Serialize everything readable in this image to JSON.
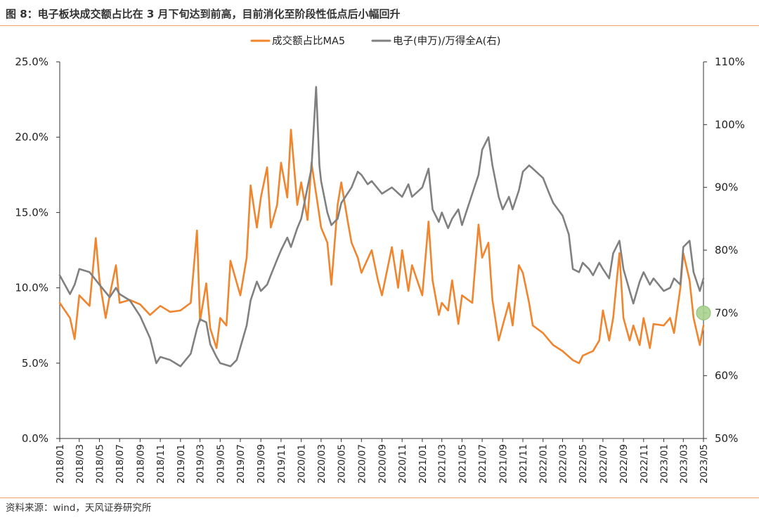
{
  "header": {
    "title": "图 8：电子板块成交额占比在 3 月下旬达到前高，目前消化至阶段性低点后小幅回升"
  },
  "footer": {
    "source": "资料来源：wind，天风证券研究所"
  },
  "colors": {
    "orange": "#f0852d",
    "gray": "#808080",
    "highlight": "#a9d18e",
    "rule": "#f0a15c"
  },
  "chart_data": {
    "type": "line",
    "legend_position": "top-center",
    "grid": false,
    "x_ticks": [
      "2018/01",
      "2018/03",
      "2018/05",
      "2018/07",
      "2018/09",
      "2018/11",
      "2019/01",
      "2019/03",
      "2019/05",
      "2019/07",
      "2019/09",
      "2019/11",
      "2020/01",
      "2020/03",
      "2020/05",
      "2020/07",
      "2020/09",
      "2020/11",
      "2021/01",
      "2021/03",
      "2021/05",
      "2021/07",
      "2021/09",
      "2021/11",
      "2022/01",
      "2022/03",
      "2022/05",
      "2022/07",
      "2022/09",
      "2022/11",
      "2023/01",
      "2023/03",
      "2023/05"
    ],
    "x_range": [
      "2018-01",
      "2023-05"
    ],
    "y_left": {
      "ticks": [
        "0.0%",
        "5.0%",
        "10.0%",
        "15.0%",
        "20.0%",
        "25.0%"
      ],
      "range": [
        0,
        25
      ],
      "unit": "%"
    },
    "y_right": {
      "ticks": [
        "50%",
        "60%",
        "70%",
        "80%",
        "90%",
        "100%",
        "110%"
      ],
      "range": [
        50,
        110
      ],
      "unit": "%"
    },
    "series": [
      {
        "name": "成交额占比MA5",
        "axis": "left",
        "color": "#f0852d",
        "points": [
          [
            "2018-01",
            9.0
          ],
          [
            "2018-02",
            8.0
          ],
          [
            "2018-02-15",
            6.6
          ],
          [
            "2018-03",
            9.5
          ],
          [
            "2018-04",
            8.8
          ],
          [
            "2018-04-20",
            13.3
          ],
          [
            "2018-05",
            10.5
          ],
          [
            "2018-05-20",
            8.0
          ],
          [
            "2018-06",
            9.5
          ],
          [
            "2018-06-20",
            11.5
          ],
          [
            "2018-07",
            9.0
          ],
          [
            "2018-08",
            9.2
          ],
          [
            "2018-09",
            8.9
          ],
          [
            "2018-10",
            8.2
          ],
          [
            "2018-11",
            8.8
          ],
          [
            "2018-12",
            8.4
          ],
          [
            "2019-01",
            8.5
          ],
          [
            "2019-02",
            9.0
          ],
          [
            "2019-02-20",
            13.8
          ],
          [
            "2019-03",
            7.8
          ],
          [
            "2019-03-20",
            10.3
          ],
          [
            "2019-04",
            7.3
          ],
          [
            "2019-04-20",
            6.0
          ],
          [
            "2019-05",
            8.0
          ],
          [
            "2019-05-20",
            7.5
          ],
          [
            "2019-06",
            11.8
          ],
          [
            "2019-07",
            9.5
          ],
          [
            "2019-07-20",
            12.0
          ],
          [
            "2019-08",
            16.8
          ],
          [
            "2019-08-20",
            14.0
          ],
          [
            "2019-09",
            16.0
          ],
          [
            "2019-09-20",
            18.0
          ],
          [
            "2019-10",
            14.0
          ],
          [
            "2019-10-20",
            15.5
          ],
          [
            "2019-11",
            18.3
          ],
          [
            "2019-11-20",
            16.0
          ],
          [
            "2019-12",
            20.5
          ],
          [
            "2019-12-20",
            15.5
          ],
          [
            "2020-01",
            17.0
          ],
          [
            "2020-01-20",
            14.5
          ],
          [
            "2020-02",
            18.3
          ],
          [
            "2020-02-20",
            15.5
          ],
          [
            "2020-03",
            14.0
          ],
          [
            "2020-03-20",
            13.0
          ],
          [
            "2020-04",
            10.2
          ],
          [
            "2020-04-20",
            15.5
          ],
          [
            "2020-05",
            17.0
          ],
          [
            "2020-05-20",
            14.5
          ],
          [
            "2020-06",
            13.0
          ],
          [
            "2020-06-20",
            12.0
          ],
          [
            "2020-07",
            11.0
          ],
          [
            "2020-08",
            12.5
          ],
          [
            "2020-08-20",
            10.5
          ],
          [
            "2020-09",
            9.5
          ],
          [
            "2020-10",
            12.7
          ],
          [
            "2020-10-20",
            10.0
          ],
          [
            "2020-11",
            12.5
          ],
          [
            "2020-11-20",
            9.8
          ],
          [
            "2020-12",
            11.5
          ],
          [
            "2021-01",
            9.5
          ],
          [
            "2021-01-20",
            14.4
          ],
          [
            "2021-02",
            10.5
          ],
          [
            "2021-02-20",
            8.2
          ],
          [
            "2021-03",
            9.0
          ],
          [
            "2021-03-20",
            8.5
          ],
          [
            "2021-04",
            10.5
          ],
          [
            "2021-04-20",
            7.6
          ],
          [
            "2021-05",
            9.5
          ],
          [
            "2021-06",
            9.0
          ],
          [
            "2021-06-20",
            14.2
          ],
          [
            "2021-07",
            12.0
          ],
          [
            "2021-07-20",
            13.0
          ],
          [
            "2021-08",
            9.2
          ],
          [
            "2021-08-20",
            6.5
          ],
          [
            "2021-09",
            7.5
          ],
          [
            "2021-09-20",
            9.0
          ],
          [
            "2021-10",
            7.5
          ],
          [
            "2021-10-20",
            11.5
          ],
          [
            "2021-11",
            11.0
          ],
          [
            "2021-11-20",
            9.0
          ],
          [
            "2021-12",
            7.5
          ],
          [
            "2022-01",
            7.0
          ],
          [
            "2022-01-20",
            6.5
          ],
          [
            "2022-02",
            6.2
          ],
          [
            "2022-03",
            5.8
          ],
          [
            "2022-04",
            5.2
          ],
          [
            "2022-04-20",
            5.0
          ],
          [
            "2022-05",
            5.5
          ],
          [
            "2022-06",
            5.8
          ],
          [
            "2022-06-20",
            6.5
          ],
          [
            "2022-07",
            8.5
          ],
          [
            "2022-07-20",
            6.5
          ],
          [
            "2022-08",
            8.0
          ],
          [
            "2022-08-20",
            12.3
          ],
          [
            "2022-09",
            8.0
          ],
          [
            "2022-09-20",
            6.5
          ],
          [
            "2022-10",
            7.5
          ],
          [
            "2022-10-20",
            6.2
          ],
          [
            "2022-11",
            8.0
          ],
          [
            "2022-11-20",
            6.0
          ],
          [
            "2022-12",
            7.6
          ],
          [
            "2023-01",
            7.5
          ],
          [
            "2023-01-20",
            8.0
          ],
          [
            "2023-02",
            7.0
          ],
          [
            "2023-02-20",
            10.0
          ],
          [
            "2023-03",
            12.3
          ],
          [
            "2023-03-20",
            10.5
          ],
          [
            "2023-04",
            8.0
          ],
          [
            "2023-04-20",
            6.2
          ],
          [
            "2023-05",
            7.5
          ]
        ]
      },
      {
        "name": "电子(申万)/万得全A(右)",
        "axis": "right",
        "color": "#808080",
        "points": [
          [
            "2018-01",
            76.0
          ],
          [
            "2018-02",
            73.0
          ],
          [
            "2018-02-15",
            74.5
          ],
          [
            "2018-03",
            77.0
          ],
          [
            "2018-04",
            76.5
          ],
          [
            "2018-05",
            74.5
          ],
          [
            "2018-06",
            72.5
          ],
          [
            "2018-06-20",
            74.0
          ],
          [
            "2018-07",
            73.0
          ],
          [
            "2018-08",
            72.0
          ],
          [
            "2018-09",
            69.5
          ],
          [
            "2018-10",
            66.0
          ],
          [
            "2018-10-20",
            62.0
          ],
          [
            "2018-11",
            63.0
          ],
          [
            "2018-12",
            62.5
          ],
          [
            "2019-01",
            61.5
          ],
          [
            "2019-02",
            63.5
          ],
          [
            "2019-02-20",
            67.5
          ],
          [
            "2019-03",
            69.0
          ],
          [
            "2019-03-20",
            68.5
          ],
          [
            "2019-04",
            65.0
          ],
          [
            "2019-04-20",
            63.0
          ],
          [
            "2019-05",
            62.0
          ],
          [
            "2019-06",
            61.5
          ],
          [
            "2019-06-20",
            62.5
          ],
          [
            "2019-07",
            64.5
          ],
          [
            "2019-07-20",
            68.0
          ],
          [
            "2019-08",
            72.0
          ],
          [
            "2019-08-20",
            75.0
          ],
          [
            "2019-09",
            73.5
          ],
          [
            "2019-09-20",
            74.5
          ],
          [
            "2019-10",
            76.0
          ],
          [
            "2019-10-20",
            78.5
          ],
          [
            "2019-11",
            80.0
          ],
          [
            "2019-11-20",
            82.0
          ],
          [
            "2019-12",
            80.5
          ],
          [
            "2019-12-20",
            83.5
          ],
          [
            "2020-01",
            85.0
          ],
          [
            "2020-01-20",
            90.0
          ],
          [
            "2020-02",
            93.0
          ],
          [
            "2020-02-15",
            106.0
          ],
          [
            "2020-02-25",
            93.5
          ],
          [
            "2020-03",
            91.0
          ],
          [
            "2020-03-20",
            86.0
          ],
          [
            "2020-04",
            84.0
          ],
          [
            "2020-04-20",
            85.0
          ],
          [
            "2020-05",
            87.5
          ],
          [
            "2020-06",
            90.0
          ],
          [
            "2020-06-20",
            92.5
          ],
          [
            "2020-07",
            92.0
          ],
          [
            "2020-07-20",
            90.5
          ],
          [
            "2020-08",
            91.0
          ],
          [
            "2020-09",
            89.0
          ],
          [
            "2020-10",
            90.0
          ],
          [
            "2020-11",
            88.5
          ],
          [
            "2020-11-20",
            90.5
          ],
          [
            "2020-12",
            88.5
          ],
          [
            "2021-01",
            90.0
          ],
          [
            "2021-01-20",
            93.0
          ],
          [
            "2021-02",
            86.5
          ],
          [
            "2021-02-20",
            84.5
          ],
          [
            "2021-03",
            86.0
          ],
          [
            "2021-03-20",
            83.5
          ],
          [
            "2021-04",
            85.0
          ],
          [
            "2021-04-20",
            86.5
          ],
          [
            "2021-05",
            84.0
          ],
          [
            "2021-06",
            89.0
          ],
          [
            "2021-06-20",
            92.0
          ],
          [
            "2021-07",
            96.0
          ],
          [
            "2021-07-20",
            98.0
          ],
          [
            "2021-08",
            93.5
          ],
          [
            "2021-08-20",
            88.5
          ],
          [
            "2021-09",
            86.5
          ],
          [
            "2021-09-20",
            88.5
          ],
          [
            "2021-10",
            86.5
          ],
          [
            "2021-10-20",
            89.5
          ],
          [
            "2021-11",
            92.5
          ],
          [
            "2021-11-20",
            93.5
          ],
          [
            "2021-12",
            93.0
          ],
          [
            "2022-01",
            91.5
          ],
          [
            "2022-01-20",
            89.0
          ],
          [
            "2022-02",
            87.5
          ],
          [
            "2022-03",
            85.5
          ],
          [
            "2022-03-20",
            82.5
          ],
          [
            "2022-04",
            77.0
          ],
          [
            "2022-04-20",
            76.5
          ],
          [
            "2022-05",
            78.0
          ],
          [
            "2022-05-20",
            77.0
          ],
          [
            "2022-06",
            76.0
          ],
          [
            "2022-06-20",
            78.0
          ],
          [
            "2022-07",
            77.0
          ],
          [
            "2022-07-20",
            75.5
          ],
          [
            "2022-08",
            79.5
          ],
          [
            "2022-08-20",
            81.5
          ],
          [
            "2022-09",
            77.0
          ],
          [
            "2022-09-20",
            73.5
          ],
          [
            "2022-10",
            71.5
          ],
          [
            "2022-10-20",
            75.0
          ],
          [
            "2022-11",
            76.5
          ],
          [
            "2022-11-20",
            74.5
          ],
          [
            "2022-12",
            75.5
          ],
          [
            "2023-01",
            73.5
          ],
          [
            "2023-01-20",
            74.0
          ],
          [
            "2023-02",
            75.5
          ],
          [
            "2023-02-20",
            74.5
          ],
          [
            "2023-03",
            80.5
          ],
          [
            "2023-03-20",
            81.5
          ],
          [
            "2023-04",
            76.5
          ],
          [
            "2023-04-20",
            73.5
          ],
          [
            "2023-05",
            75.5
          ]
        ]
      }
    ]
  }
}
